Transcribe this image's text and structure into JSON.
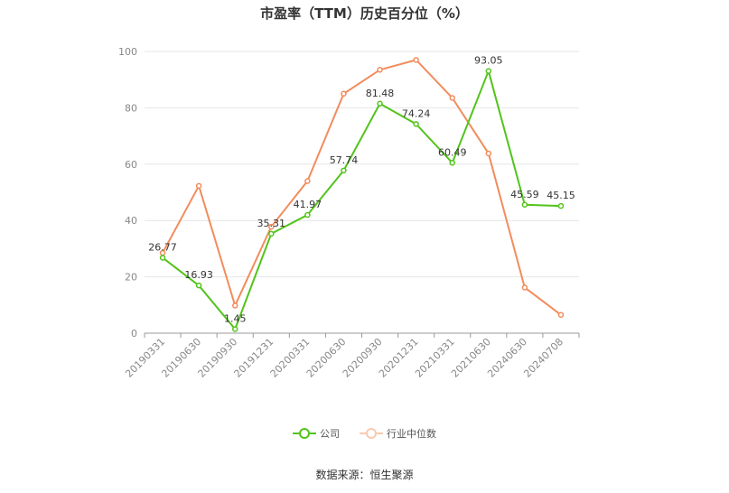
{
  "chart_data": {
    "type": "line",
    "title": "市盈率（TTM）历史百分位（%）",
    "categories": [
      "20190331",
      "20190630",
      "20190930",
      "20191231",
      "20200331",
      "20200630",
      "20200930",
      "20201231",
      "20210331",
      "20210630",
      "20240630",
      "20240708"
    ],
    "series": [
      {
        "name": "公司",
        "color": "#52c41a",
        "values": [
          26.77,
          16.93,
          1.45,
          35.31,
          41.97,
          57.74,
          81.48,
          74.24,
          60.49,
          93.05,
          45.59,
          45.15
        ],
        "labels": [
          "26.77",
          "16.93",
          "1.45",
          "35.31",
          "41.97",
          "57.74",
          "81.48",
          "74.24",
          "60.49",
          "93.05",
          "45.59",
          "45.15"
        ]
      },
      {
        "name": "行业中位数",
        "color": "#f28c5c",
        "values": [
          28.5,
          52.3,
          9.8,
          37.8,
          54.0,
          85.0,
          93.5,
          97.0,
          83.5,
          63.8,
          16.2,
          6.5
        ]
      }
    ],
    "ylim": [
      0,
      100
    ],
    "yticks": [
      0,
      20,
      40,
      60,
      80,
      100
    ],
    "grid": true,
    "legend": "bottom-center",
    "source": "数据来源：恒生聚源"
  }
}
